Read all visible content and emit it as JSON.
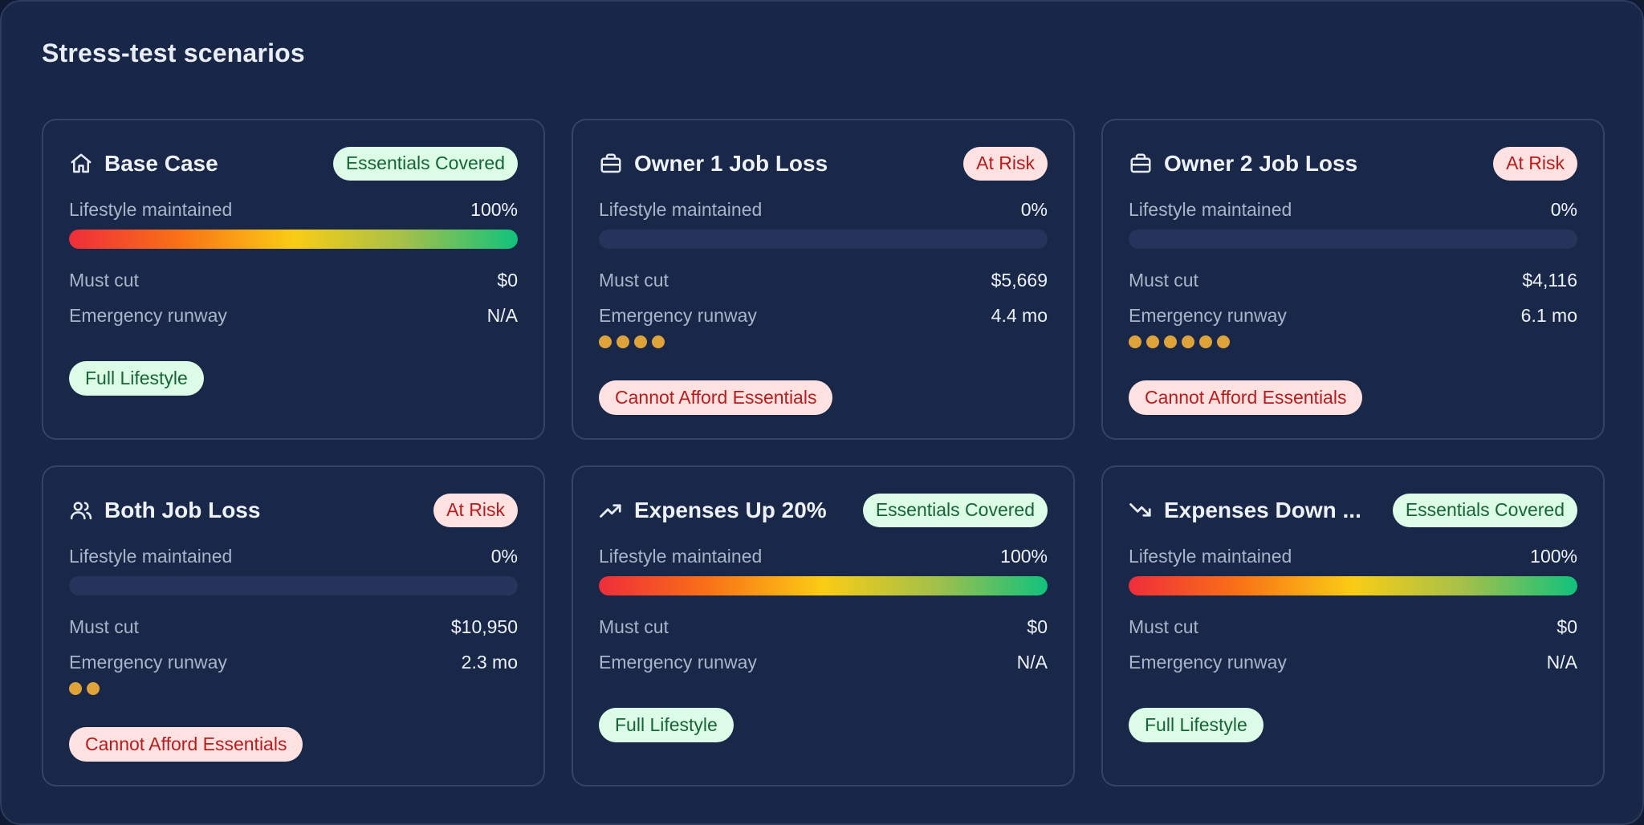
{
  "panel": {
    "title": "Stress-test scenarios"
  },
  "labels": {
    "lifestyle": "Lifestyle maintained",
    "must_cut": "Must cut",
    "runway": "Emergency runway"
  },
  "colors": {
    "panel_bg": "#182647",
    "card_bg": "#192849",
    "badge_green_bg": "#dcfce7",
    "badge_green_text": "#166534",
    "badge_red_bg": "#fee2e2",
    "badge_red_text": "#b91c1c",
    "runway_dot": "#e0a33a"
  },
  "scenarios": [
    {
      "name": "Base Case",
      "icon": "home-icon",
      "badge": "Essentials Covered",
      "badge_tone": "green",
      "lifestyle_pct_label": "100%",
      "lifestyle_fraction": 1.0,
      "must_cut": "$0",
      "runway": "N/A",
      "runway_dots": 0,
      "status": "Full Lifestyle",
      "status_tone": "green"
    },
    {
      "name": "Owner 1 Job Loss",
      "icon": "briefcase-icon",
      "badge": "At Risk",
      "badge_tone": "red",
      "lifestyle_pct_label": "0%",
      "lifestyle_fraction": 0.0,
      "must_cut": "$5,669",
      "runway": "4.4 mo",
      "runway_dots": 4,
      "status": "Cannot Afford Essentials",
      "status_tone": "red"
    },
    {
      "name": "Owner 2 Job Loss",
      "icon": "briefcase-icon",
      "badge": "At Risk",
      "badge_tone": "red",
      "lifestyle_pct_label": "0%",
      "lifestyle_fraction": 0.0,
      "must_cut": "$4,116",
      "runway": "6.1 mo",
      "runway_dots": 6,
      "status": "Cannot Afford Essentials",
      "status_tone": "red"
    },
    {
      "name": "Both Job Loss",
      "icon": "users-icon",
      "badge": "At Risk",
      "badge_tone": "red",
      "lifestyle_pct_label": "0%",
      "lifestyle_fraction": 0.0,
      "must_cut": "$10,950",
      "runway": "2.3 mo",
      "runway_dots": 2,
      "status": "Cannot Afford Essentials",
      "status_tone": "red"
    },
    {
      "name": "Expenses Up 20%",
      "icon": "trending-up-icon",
      "badge": "Essentials Covered",
      "badge_tone": "green",
      "lifestyle_pct_label": "100%",
      "lifestyle_fraction": 1.0,
      "must_cut": "$0",
      "runway": "N/A",
      "runway_dots": 0,
      "status": "Full Lifestyle",
      "status_tone": "green"
    },
    {
      "name": "Expenses Down ...",
      "icon": "trending-down-icon",
      "badge": "Essentials Covered",
      "badge_tone": "green",
      "lifestyle_pct_label": "100%",
      "lifestyle_fraction": 1.0,
      "must_cut": "$0",
      "runway": "N/A",
      "runway_dots": 0,
      "status": "Full Lifestyle",
      "status_tone": "green"
    }
  ]
}
